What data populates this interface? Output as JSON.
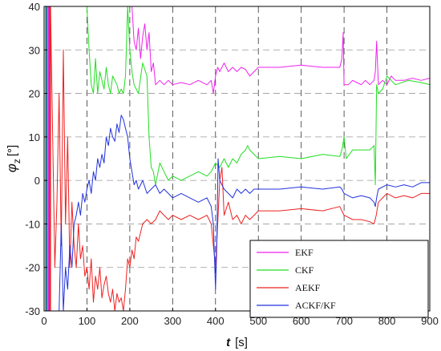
{
  "chart_data": {
    "type": "line",
    "xlabel": {
      "symbol": "t",
      "unit": "[s]"
    },
    "ylabel": {
      "symbol": "φ",
      "subscript": "z",
      "unit": "[°]"
    },
    "xlim": [
      0,
      900
    ],
    "ylim": [
      -30,
      40
    ],
    "xticks": [
      0,
      100,
      200,
      300,
      400,
      500,
      600,
      700,
      800,
      900
    ],
    "yticks": [
      -30,
      -20,
      -10,
      0,
      10,
      20,
      30,
      40
    ],
    "grid": true,
    "legend_position": "lower-right",
    "series": [
      {
        "name": "EKF",
        "color": "#ee22ee",
        "points": [
          [
            205,
            40
          ],
          [
            210,
            32
          ],
          [
            215,
            30
          ],
          [
            220,
            35
          ],
          [
            225,
            28
          ],
          [
            230,
            33
          ],
          [
            235,
            36
          ],
          [
            240,
            30
          ],
          [
            245,
            34
          ],
          [
            250,
            25
          ],
          [
            255,
            27
          ],
          [
            260,
            22
          ],
          [
            270,
            23
          ],
          [
            280,
            22
          ],
          [
            290,
            23
          ],
          [
            300,
            22
          ],
          [
            320,
            22.5
          ],
          [
            340,
            22
          ],
          [
            360,
            23
          ],
          [
            380,
            22
          ],
          [
            390,
            23
          ],
          [
            395,
            20
          ],
          [
            400,
            24
          ],
          [
            405,
            26
          ],
          [
            410,
            25
          ],
          [
            420,
            27
          ],
          [
            430,
            25
          ],
          [
            440,
            26
          ],
          [
            450,
            25
          ],
          [
            460,
            26
          ],
          [
            470,
            25.5
          ],
          [
            480,
            24
          ],
          [
            490,
            25
          ],
          [
            500,
            26
          ],
          [
            550,
            26
          ],
          [
            600,
            26.5
          ],
          [
            650,
            26
          ],
          [
            690,
            26
          ],
          [
            695,
            28
          ],
          [
            698,
            34
          ],
          [
            700,
            22
          ],
          [
            710,
            22
          ],
          [
            720,
            23
          ],
          [
            730,
            22.5
          ],
          [
            740,
            22
          ],
          [
            750,
            23
          ],
          [
            760,
            22
          ],
          [
            770,
            23
          ],
          [
            773,
            25
          ],
          [
            776,
            32
          ],
          [
            780,
            22
          ],
          [
            790,
            23
          ],
          [
            800,
            22
          ],
          [
            810,
            24
          ],
          [
            820,
            23
          ],
          [
            840,
            23
          ],
          [
            860,
            23.5
          ],
          [
            880,
            23
          ],
          [
            900,
            23.5
          ]
        ]
      },
      {
        "name": "CKF",
        "color": "#22dd22",
        "points": [
          [
            100,
            40
          ],
          [
            105,
            30
          ],
          [
            110,
            22
          ],
          [
            115,
            20
          ],
          [
            120,
            28
          ],
          [
            125,
            20
          ],
          [
            130,
            25
          ],
          [
            135,
            23
          ],
          [
            140,
            21
          ],
          [
            145,
            26
          ],
          [
            150,
            22
          ],
          [
            155,
            20
          ],
          [
            160,
            24
          ],
          [
            165,
            23
          ],
          [
            170,
            22
          ],
          [
            175,
            20
          ],
          [
            180,
            21
          ],
          [
            185,
            20
          ],
          [
            190,
            24
          ],
          [
            195,
            40
          ],
          [
            200,
            30
          ],
          [
            205,
            25
          ],
          [
            210,
            22
          ],
          [
            220,
            20
          ],
          [
            230,
            27
          ],
          [
            240,
            24
          ],
          [
            245,
            10
          ],
          [
            250,
            3
          ],
          [
            255,
            2
          ],
          [
            260,
            -1
          ],
          [
            270,
            4
          ],
          [
            280,
            2
          ],
          [
            290,
            0
          ],
          [
            300,
            1
          ],
          [
            320,
            0
          ],
          [
            340,
            1
          ],
          [
            360,
            2
          ],
          [
            380,
            1
          ],
          [
            390,
            2
          ],
          [
            400,
            4
          ],
          [
            410,
            3
          ],
          [
            420,
            5
          ],
          [
            430,
            3
          ],
          [
            440,
            5
          ],
          [
            450,
            4
          ],
          [
            460,
            6
          ],
          [
            470,
            7
          ],
          [
            475,
            8
          ],
          [
            480,
            7
          ],
          [
            490,
            6
          ],
          [
            500,
            5
          ],
          [
            550,
            5.5
          ],
          [
            600,
            5
          ],
          [
            650,
            6
          ],
          [
            690,
            5.5
          ],
          [
            695,
            7
          ],
          [
            700,
            10
          ],
          [
            705,
            5
          ],
          [
            720,
            7
          ],
          [
            740,
            7
          ],
          [
            760,
            7
          ],
          [
            770,
            8
          ],
          [
            773,
            -1
          ],
          [
            776,
            22
          ],
          [
            780,
            20
          ],
          [
            790,
            21
          ],
          [
            800,
            24
          ],
          [
            810,
            23
          ],
          [
            820,
            22
          ],
          [
            850,
            23
          ],
          [
            880,
            22.5
          ],
          [
            900,
            22
          ]
        ]
      },
      {
        "name": "AEKF",
        "color": "#ee2222",
        "points": [
          [
            15,
            40
          ],
          [
            20,
            10
          ],
          [
            25,
            -20
          ],
          [
            30,
            -5
          ],
          [
            35,
            20
          ],
          [
            40,
            -15
          ],
          [
            45,
            30
          ],
          [
            50,
            -10
          ],
          [
            55,
            10
          ],
          [
            60,
            -20
          ],
          [
            65,
            -5
          ],
          [
            70,
            -15
          ],
          [
            75,
            -20
          ],
          [
            80,
            -10
          ],
          [
            85,
            -18
          ],
          [
            90,
            -15
          ],
          [
            95,
            -22
          ],
          [
            100,
            -20
          ],
          [
            105,
            -25
          ],
          [
            110,
            -18
          ],
          [
            115,
            -28
          ],
          [
            120,
            -22
          ],
          [
            125,
            -25
          ],
          [
            130,
            -20
          ],
          [
            135,
            -27
          ],
          [
            140,
            -24
          ],
          [
            145,
            -22
          ],
          [
            150,
            -26
          ],
          [
            155,
            -28
          ],
          [
            160,
            -25
          ],
          [
            165,
            -30
          ],
          [
            170,
            -26
          ],
          [
            175,
            -28
          ],
          [
            180,
            -27
          ],
          [
            185,
            -30
          ],
          [
            190,
            -25
          ],
          [
            195,
            -18
          ],
          [
            200,
            -20
          ],
          [
            205,
            -16
          ],
          [
            210,
            -18
          ],
          [
            215,
            -13
          ],
          [
            220,
            -14
          ],
          [
            225,
            -12
          ],
          [
            230,
            -10
          ],
          [
            240,
            -9
          ],
          [
            250,
            -10
          ],
          [
            260,
            -9
          ],
          [
            270,
            -7
          ],
          [
            280,
            -8
          ],
          [
            290,
            -9
          ],
          [
            300,
            -8
          ],
          [
            320,
            -9
          ],
          [
            340,
            -8
          ],
          [
            360,
            -9
          ],
          [
            380,
            -8
          ],
          [
            390,
            -10
          ],
          [
            395,
            -15
          ],
          [
            400,
            -20
          ],
          [
            405,
            -10
          ],
          [
            410,
            0
          ],
          [
            415,
            3
          ],
          [
            420,
            -8
          ],
          [
            430,
            -5
          ],
          [
            440,
            -9
          ],
          [
            450,
            -8
          ],
          [
            460,
            -10
          ],
          [
            470,
            -8
          ],
          [
            480,
            -9
          ],
          [
            490,
            -8
          ],
          [
            500,
            -7
          ],
          [
            550,
            -7
          ],
          [
            600,
            -6.5
          ],
          [
            650,
            -7
          ],
          [
            690,
            -6
          ],
          [
            695,
            -7
          ],
          [
            700,
            -8
          ],
          [
            720,
            -9
          ],
          [
            740,
            -9
          ],
          [
            760,
            -9.5
          ],
          [
            770,
            -10
          ],
          [
            775,
            -8
          ],
          [
            780,
            -5
          ],
          [
            790,
            -4
          ],
          [
            800,
            -3
          ],
          [
            820,
            -4
          ],
          [
            840,
            -3.5
          ],
          [
            860,
            -4
          ],
          [
            880,
            -3
          ],
          [
            900,
            -3
          ]
        ]
      },
      {
        "name": "ACKF/KF",
        "color": "#2233dd",
        "points": [
          [
            35,
            -30
          ],
          [
            40,
            -10
          ],
          [
            45,
            -30
          ],
          [
            50,
            -20
          ],
          [
            55,
            -25
          ],
          [
            60,
            -15
          ],
          [
            65,
            -20
          ],
          [
            70,
            -10
          ],
          [
            75,
            -8
          ],
          [
            80,
            -5
          ],
          [
            85,
            -8
          ],
          [
            90,
            -3
          ],
          [
            95,
            -5
          ],
          [
            100,
            -2
          ],
          [
            105,
            0
          ],
          [
            110,
            -3
          ],
          [
            115,
            2
          ],
          [
            120,
            0
          ],
          [
            125,
            5
          ],
          [
            130,
            3
          ],
          [
            135,
            6
          ],
          [
            140,
            4
          ],
          [
            145,
            10
          ],
          [
            150,
            8
          ],
          [
            155,
            12
          ],
          [
            160,
            10
          ],
          [
            165,
            9
          ],
          [
            170,
            13
          ],
          [
            175,
            11
          ],
          [
            180,
            15
          ],
          [
            185,
            14
          ],
          [
            190,
            12
          ],
          [
            195,
            10
          ],
          [
            200,
            5
          ],
          [
            205,
            2
          ],
          [
            210,
            -1
          ],
          [
            215,
            0
          ],
          [
            220,
            -2
          ],
          [
            225,
            -1
          ],
          [
            230,
            0
          ],
          [
            240,
            -3
          ],
          [
            250,
            -2
          ],
          [
            260,
            -1
          ],
          [
            270,
            -3
          ],
          [
            280,
            -2
          ],
          [
            290,
            -3
          ],
          [
            300,
            -4
          ],
          [
            320,
            -3
          ],
          [
            340,
            -4
          ],
          [
            360,
            -5
          ],
          [
            380,
            -4
          ],
          [
            390,
            -6
          ],
          [
            395,
            -10
          ],
          [
            400,
            -25
          ],
          [
            403,
            -15
          ],
          [
            406,
            5
          ],
          [
            410,
            0
          ],
          [
            420,
            -2
          ],
          [
            430,
            -3
          ],
          [
            440,
            -4
          ],
          [
            450,
            -2
          ],
          [
            460,
            -3
          ],
          [
            470,
            -2
          ],
          [
            480,
            -3
          ],
          [
            490,
            -2
          ],
          [
            500,
            -2
          ],
          [
            550,
            -2
          ],
          [
            600,
            -1.5
          ],
          [
            650,
            -2
          ],
          [
            690,
            -1.5
          ],
          [
            695,
            -2
          ],
          [
            700,
            -3
          ],
          [
            720,
            -4
          ],
          [
            740,
            -3.5
          ],
          [
            760,
            -4
          ],
          [
            770,
            -5
          ],
          [
            773,
            -6
          ],
          [
            776,
            -4
          ],
          [
            780,
            -2
          ],
          [
            800,
            -1
          ],
          [
            820,
            -1.5
          ],
          [
            840,
            -1
          ],
          [
            860,
            -1.5
          ],
          [
            880,
            -0.5
          ],
          [
            900,
            -0.5
          ]
        ]
      }
    ],
    "vertical_bands": [
      {
        "x": 5,
        "color": "#2233dd"
      },
      {
        "x": 8,
        "color": "#22dd22"
      },
      {
        "x": 11,
        "color": "#ee22ee"
      },
      {
        "x": 14,
        "color": "#ee2222"
      }
    ]
  }
}
